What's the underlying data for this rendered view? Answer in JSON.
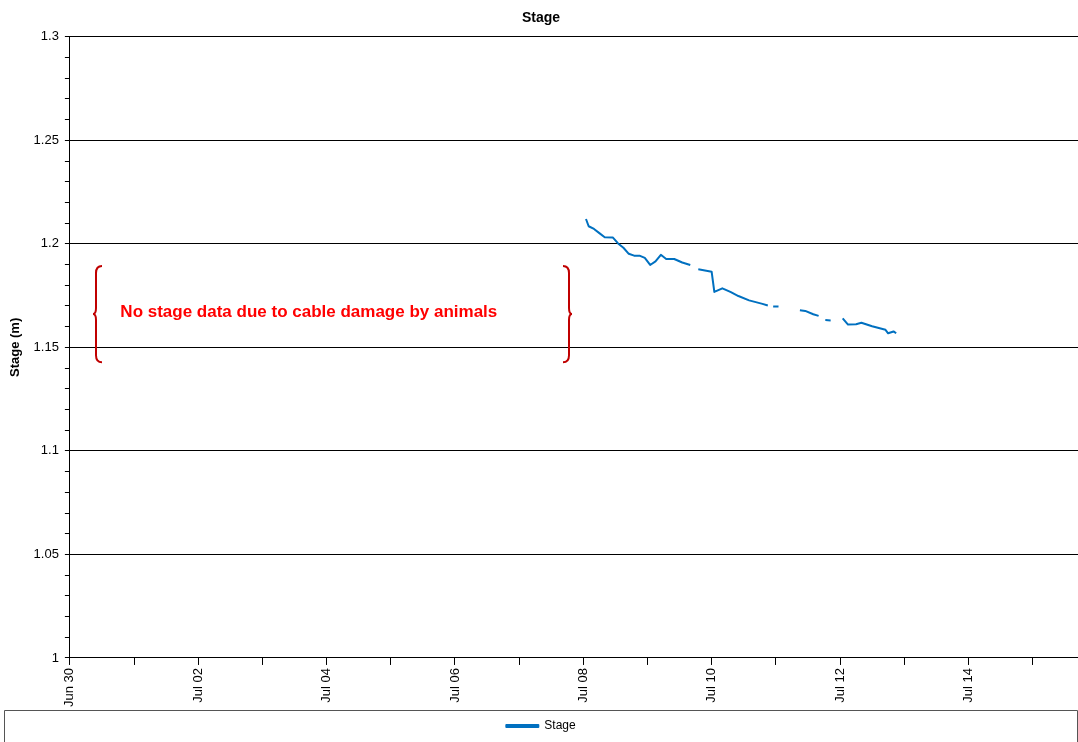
{
  "chart_data": {
    "type": "line",
    "title": "Stage",
    "ylabel": "Stage (m)",
    "annotations": [
      "No stage data due to cable damage by animals"
    ],
    "x": [
      "--07-08T01:00",
      "--07-08T02:00",
      "--07-08T04:00",
      "--07-08T06:00",
      "--07-08T08:00",
      "--07-08T11:00",
      "--07-08T13:00",
      "--07-08T15:00",
      "--07-08T17:00",
      "--07-08T19:00",
      "--07-08T21:00",
      "--07-08T23:00",
      "--07-09T01:00",
      "--07-09T03:00",
      "--07-09T05:00",
      "--07-09T07:00",
      "--07-09T10:00",
      "--07-09T13:00",
      "--07-09T16:00",
      "--07-09T17:30",
      "--07-09T19:00",
      "--07-10T00:00",
      "--07-10T01:00",
      "--07-10T04:00",
      "--07-10T07:00",
      "--07-10T10:00",
      "--07-10T14:00",
      "--07-10T19:00",
      "--07-10T21:00",
      "--07-10T22:00",
      "--07-10T23:00",
      "--07-11T01:00",
      "--07-11T03:00",
      "--07-11T09:00",
      "--07-11T11:00",
      "--07-11T14:00",
      "--07-11T16:00",
      "--07-11T17:30",
      "--07-11T18:30",
      "--07-11T20:30",
      "--07-11T22:00",
      "--07-12T01:00",
      "--07-12T03:00",
      "--07-12T06:00",
      "--07-12T08:00",
      "--07-12T12:00",
      "--07-12T17:00",
      "--07-12T18:00",
      "--07-12T20:00",
      "--07-12T21:00"
    ],
    "series": [
      {
        "name": "Stage",
        "color": "#0070c0",
        "values": [
          1.212,
          1.2085,
          1.2072,
          1.2052,
          1.2032,
          1.2031,
          1.2002,
          1.1981,
          1.1952,
          1.1943,
          1.1943,
          1.1932,
          1.1898,
          1.1915,
          1.1947,
          1.1927,
          1.1927,
          1.191,
          1.1898,
          null,
          1.1877,
          1.1865,
          1.1768,
          1.1785,
          1.1768,
          1.1748,
          1.1727,
          1.171,
          1.1702,
          null,
          1.1698,
          1.1697,
          null,
          1.1679,
          1.1676,
          1.166,
          1.1652,
          null,
          1.1632,
          1.163,
          null,
          1.164,
          1.161,
          1.1612,
          1.1619,
          1.1602,
          1.1585,
          1.1568,
          1.1577,
          1.1568
        ]
      }
    ],
    "xlim": [
      "--06-30",
      "--07-15T17:00"
    ],
    "xticks": [
      {
        "value": "--06-30",
        "label": "Jun 30"
      },
      {
        "value": "--07-01",
        "label": null
      },
      {
        "value": "--07-02",
        "label": "Jul 02"
      },
      {
        "value": "--07-03",
        "label": null
      },
      {
        "value": "--07-04",
        "label": "Jul 04"
      },
      {
        "value": "--07-05",
        "label": null
      },
      {
        "value": "--07-06",
        "label": "Jul 06"
      },
      {
        "value": "--07-07",
        "label": null
      },
      {
        "value": "--07-08",
        "label": "Jul 08"
      },
      {
        "value": "--07-09",
        "label": null
      },
      {
        "value": "--07-10",
        "label": "Jul 10"
      },
      {
        "value": "--07-11",
        "label": null
      },
      {
        "value": "--07-12",
        "label": "Jul 12"
      },
      {
        "value": "--07-13",
        "label": null
      },
      {
        "value": "--07-14",
        "label": "Jul 14"
      },
      {
        "value": "--07-15",
        "label": null
      }
    ],
    "ylim": [
      1,
      1.3
    ],
    "yticks": [
      1,
      {
        "value": 1.01,
        "label": null
      },
      {
        "value": 1.02,
        "label": null
      },
      {
        "value": 1.03,
        "label": null
      },
      {
        "value": 1.04,
        "label": null
      },
      1.05,
      {
        "value": 1.06,
        "label": null
      },
      {
        "value": 1.07,
        "label": null
      },
      {
        "value": 1.08,
        "label": null
      },
      {
        "value": 1.09,
        "label": null
      },
      1.1,
      {
        "value": 1.11,
        "label": null
      },
      {
        "value": 1.12,
        "label": null
      },
      {
        "value": 1.13,
        "label": null
      },
      {
        "value": 1.14,
        "label": null
      },
      1.15,
      {
        "value": 1.16,
        "label": null
      },
      {
        "value": 1.17,
        "label": null
      },
      {
        "value": 1.18,
        "label": null
      },
      {
        "value": 1.19,
        "label": null
      },
      1.2,
      {
        "value": 1.21,
        "label": null
      },
      {
        "value": 1.22,
        "label": null
      },
      {
        "value": 1.23,
        "label": null
      },
      {
        "value": 1.24,
        "label": null
      },
      1.25,
      {
        "value": 1.26,
        "label": null
      },
      {
        "value": 1.27,
        "label": null
      },
      {
        "value": 1.28,
        "label": null
      },
      {
        "value": 1.29,
        "label": null
      },
      1.3
    ],
    "grid": "y",
    "legend": "bottom",
    "marker": "none",
    "line_style": "solid"
  }
}
